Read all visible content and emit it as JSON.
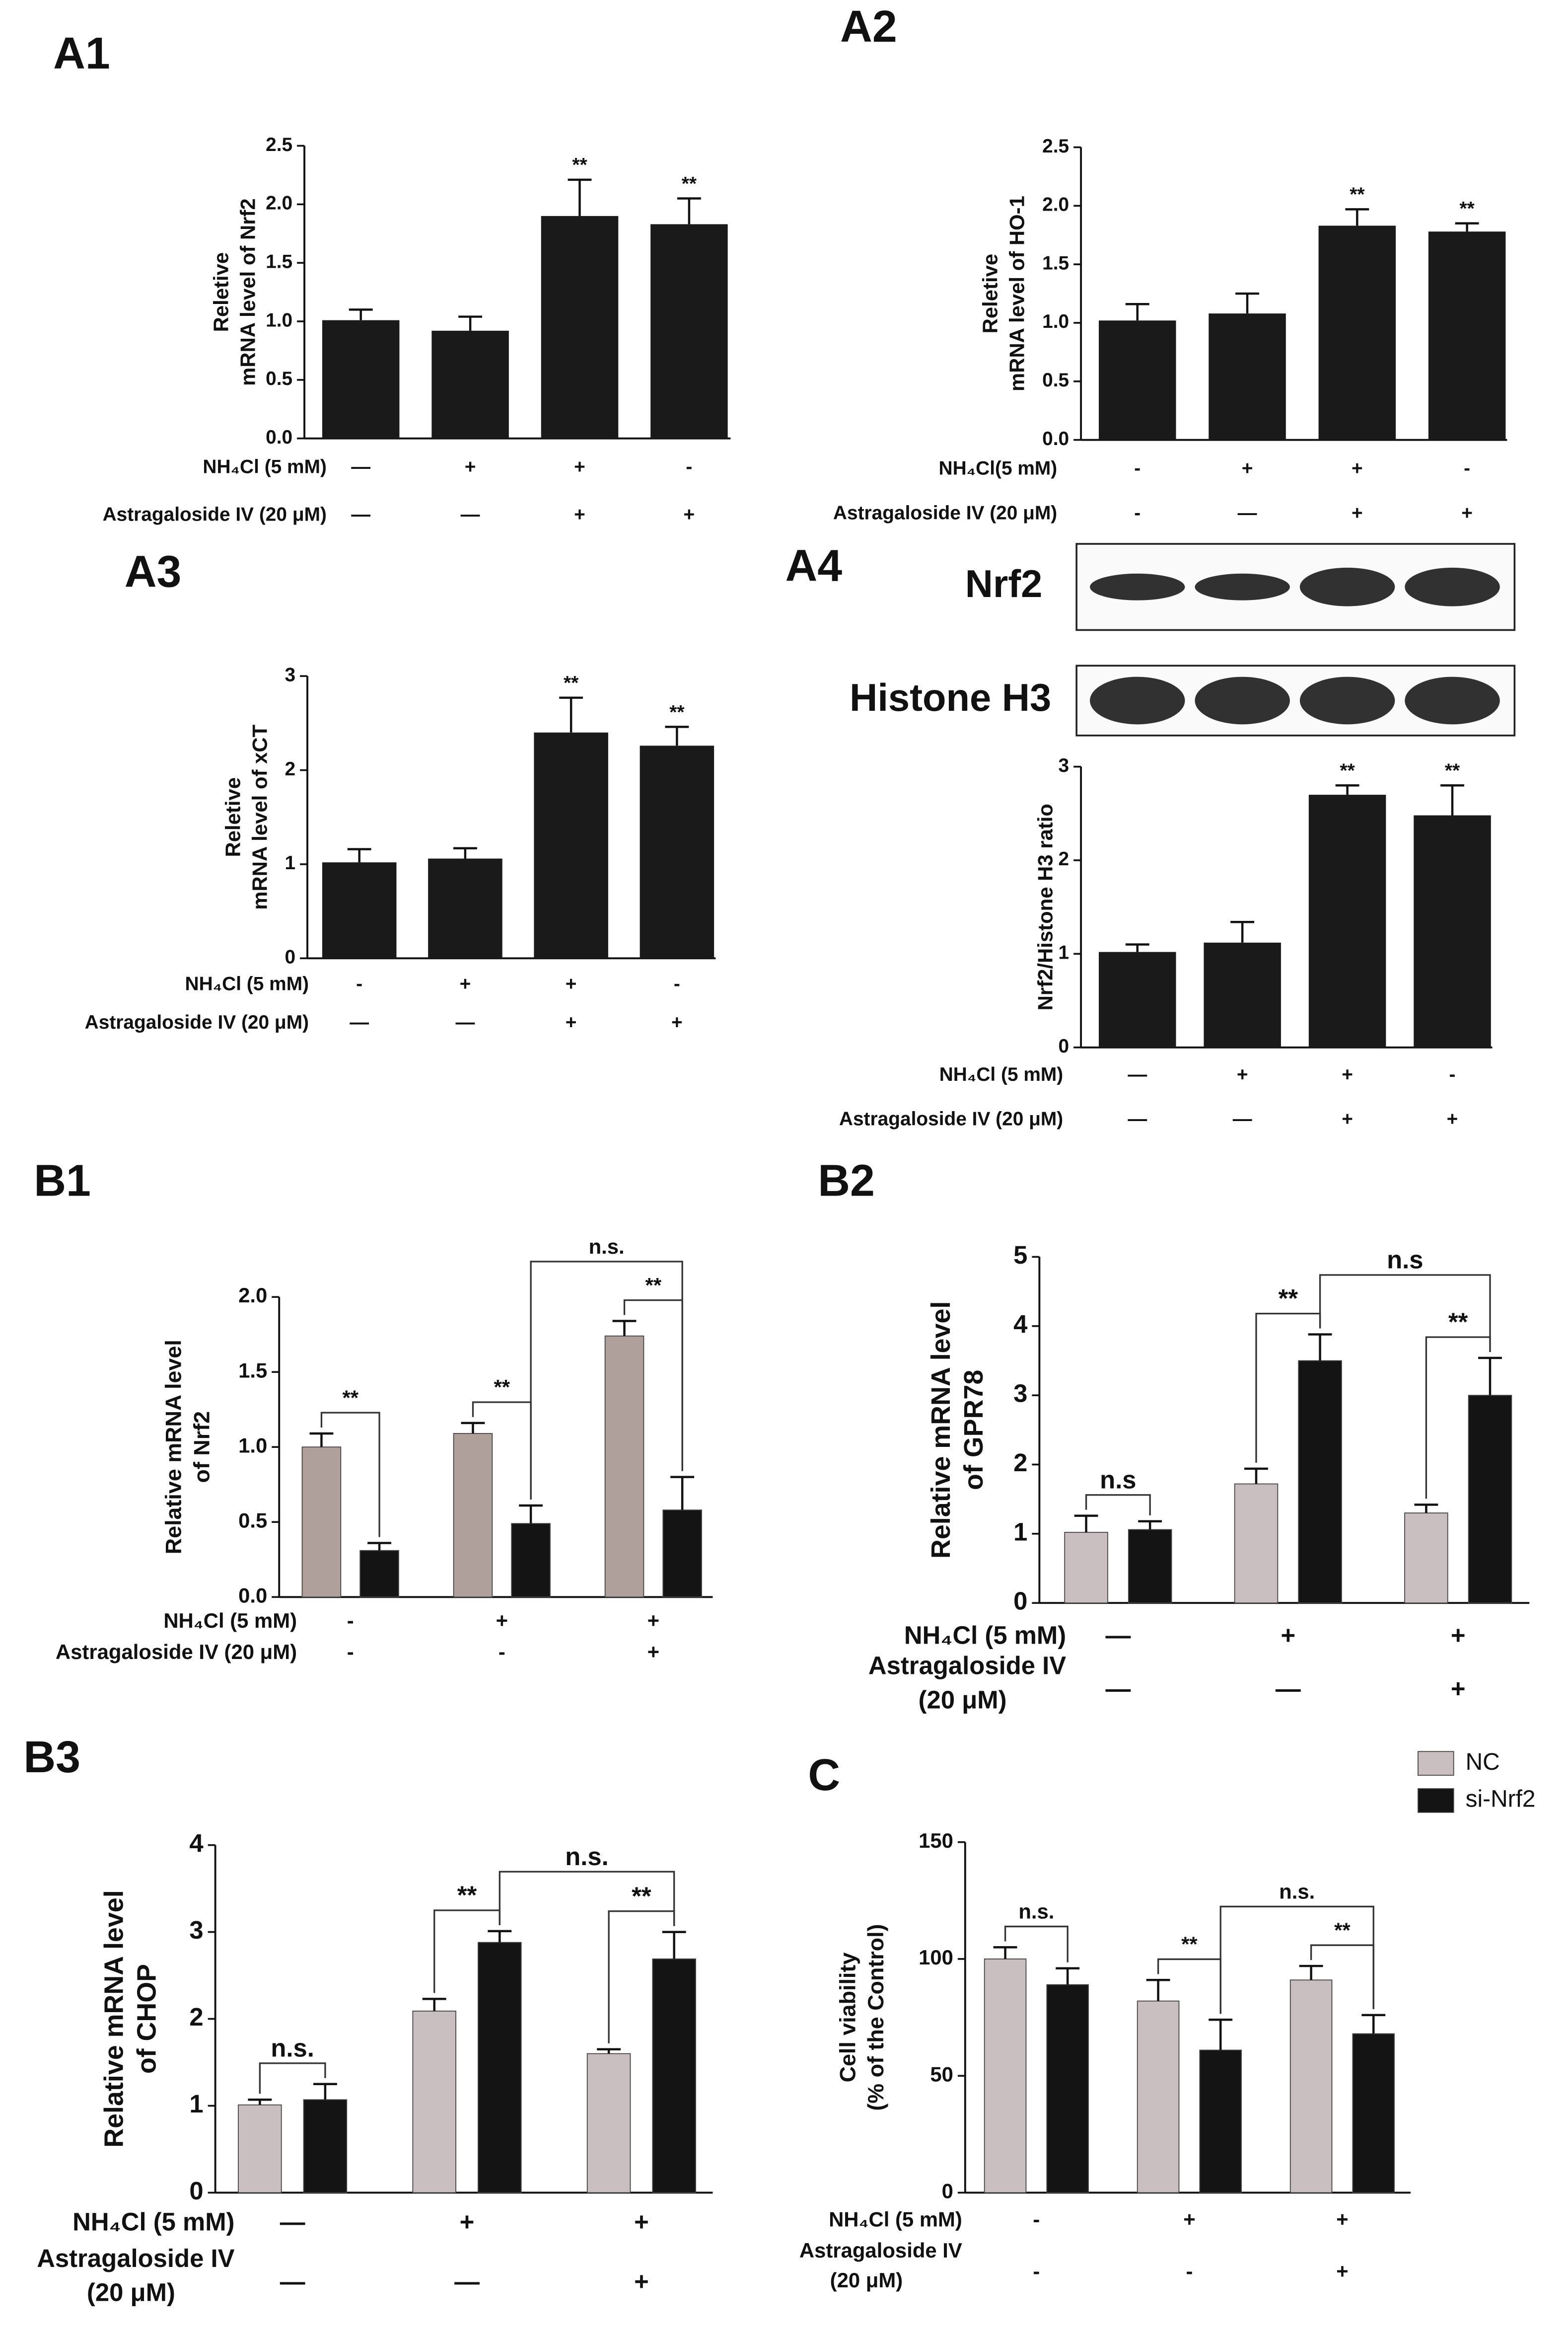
{
  "chart_data": [
    {
      "type": "bar",
      "panel": "A1",
      "ylabel": [
        "Reletive",
        "mRNA level of Nrf2"
      ],
      "color": "#1a1a1a",
      "values": [
        1.01,
        0.92,
        1.9,
        1.83
      ],
      "errors": [
        0.09,
        0.12,
        0.31,
        0.22
      ],
      "bar_labels": [
        null,
        null,
        "**",
        "**"
      ],
      "ylim": [
        0,
        2.5
      ],
      "yticks": [
        {
          "value": 0,
          "label": "0.0"
        },
        0.5,
        {
          "value": 1,
          "label": "1.0"
        },
        1.5,
        {
          "value": 2,
          "label": "2.0"
        },
        2.5
      ],
      "conditions": [
        {
          "label": "NH₄Cl (5 mM)",
          "marks": [
            "—",
            "+",
            "+",
            "-"
          ]
        },
        {
          "label": "Astragaloside IV (20 μM)",
          "marks": [
            "—",
            "—",
            "+",
            "+"
          ]
        }
      ]
    },
    {
      "type": "bar",
      "panel": "A2",
      "ylabel": [
        "Reletive",
        "mRNA level of HO-1"
      ],
      "color": "#1a1a1a",
      "values": [
        1.02,
        1.08,
        1.83,
        1.78
      ],
      "errors": [
        0.14,
        0.17,
        0.14,
        0.07
      ],
      "bar_labels": [
        null,
        null,
        "**",
        "**"
      ],
      "ylim": [
        0,
        2.5
      ],
      "yticks": [
        {
          "value": 0,
          "label": "0.0"
        },
        0.5,
        {
          "value": 1,
          "label": "1.0"
        },
        1.5,
        {
          "value": 2,
          "label": "2.0"
        },
        2.5
      ],
      "conditions": [
        {
          "label": "NH₄Cl(5 mM)",
          "marks": [
            "-",
            "+",
            "+",
            "-"
          ]
        },
        {
          "label": "Astragaloside IV (20 μM)",
          "marks": [
            "-",
            "—",
            "+",
            "+"
          ]
        }
      ]
    },
    {
      "type": "bar",
      "panel": "A3",
      "ylabel": [
        "Reletive",
        "mRNA level of xCT"
      ],
      "color": "#1a1a1a",
      "values": [
        1.02,
        1.06,
        2.4,
        2.26
      ],
      "errors": [
        0.14,
        0.11,
        0.37,
        0.2
      ],
      "bar_labels": [
        null,
        null,
        "**",
        "**"
      ],
      "ylim": [
        0,
        3
      ],
      "yticks": [
        0,
        1,
        2,
        3
      ],
      "conditions": [
        {
          "label": "NH₄Cl (5 mM)",
          "marks": [
            "-",
            "+",
            "+",
            "-"
          ]
        },
        {
          "label": "Astragaloside IV (20 μM)",
          "marks": [
            "—",
            "—",
            "+",
            "+"
          ]
        }
      ]
    },
    {
      "type": "bar",
      "panel": "A4",
      "blot_labels": [
        "Nrf2",
        "Histone H3"
      ],
      "ylabel": [
        "Nrf2/Histone H3 ratio"
      ],
      "color": "#1a1a1a",
      "values": [
        1.02,
        1.12,
        2.7,
        2.48
      ],
      "errors": [
        0.08,
        0.22,
        0.1,
        0.32
      ],
      "bar_labels": [
        null,
        null,
        "**",
        "**"
      ],
      "ylim": [
        0,
        3
      ],
      "yticks": [
        0,
        1,
        2,
        3
      ],
      "conditions": [
        {
          "label": "NH₄Cl (5 mM)",
          "marks": [
            "—",
            "+",
            "+",
            "-"
          ]
        },
        {
          "label": "Astragaloside IV (20 μM)",
          "marks": [
            "—",
            "—",
            "+",
            "+"
          ]
        }
      ]
    },
    {
      "type": "grouped_bar",
      "panel": "B1",
      "ylabel": [
        "Relative mRNA level",
        "of Nrf2"
      ],
      "series": [
        {
          "color": "#b0a09c",
          "values": [
            1.0,
            1.09,
            1.74
          ],
          "errors": [
            0.09,
            0.07,
            0.1
          ]
        },
        {
          "color": "#141414",
          "values": [
            0.31,
            0.49,
            0.58
          ],
          "errors": [
            0.05,
            0.12,
            0.22
          ]
        }
      ],
      "brackets": [
        {
          "from": [
            0,
            0
          ],
          "to": [
            0,
            1
          ],
          "label": "**"
        },
        {
          "from": [
            1,
            0
          ],
          "to": [
            1,
            1
          ],
          "label": "**"
        },
        {
          "from": [
            2,
            0
          ],
          "to": [
            2,
            1
          ],
          "label": "**"
        },
        {
          "from": [
            1,
            1
          ],
          "to": [
            2,
            1
          ],
          "label": "n.s."
        }
      ],
      "ylim": [
        0,
        2
      ],
      "yticks": [
        {
          "value": 0,
          "label": "0.0"
        },
        0.5,
        {
          "value": 1,
          "label": "1.0"
        },
        1.5,
        {
          "value": 2,
          "label": "2.0"
        }
      ],
      "conditions": [
        {
          "label": "NH₄Cl (5 mM)",
          "marks": [
            "-",
            "+",
            "+"
          ]
        },
        {
          "label": "Astragaloside IV (20 μM)",
          "marks": [
            "-",
            "-",
            "+"
          ]
        }
      ]
    },
    {
      "type": "grouped_bar",
      "panel": "B2",
      "ylabel": [
        "Relative mRNA level",
        "of GPR78"
      ],
      "series": [
        {
          "color": "#c9bfc0",
          "values": [
            1.02,
            1.72,
            1.3
          ],
          "errors": [
            0.24,
            0.22,
            0.12
          ]
        },
        {
          "color": "#141414",
          "values": [
            1.06,
            3.5,
            3.0
          ],
          "errors": [
            0.12,
            0.38,
            0.54
          ]
        }
      ],
      "brackets": [
        {
          "from": [
            0,
            0
          ],
          "to": [
            0,
            1
          ],
          "label": "n.s"
        },
        {
          "from": [
            1,
            0
          ],
          "to": [
            1,
            1
          ],
          "label": "**"
        },
        {
          "from": [
            2,
            0
          ],
          "to": [
            2,
            1
          ],
          "label": "**"
        },
        {
          "from": [
            1,
            1
          ],
          "to": [
            2,
            1
          ],
          "label": "n.s"
        }
      ],
      "ylim": [
        0,
        5
      ],
      "yticks": [
        0,
        1,
        2,
        3,
        4,
        5
      ],
      "conditions": [
        {
          "label": [
            "NH₄Cl (5 mM)"
          ],
          "marks": [
            "—",
            "+",
            "+"
          ]
        },
        {
          "label": [
            "Astragaloside IV",
            "(20 μM)"
          ],
          "marks": [
            "—",
            "—",
            "+"
          ]
        }
      ]
    },
    {
      "type": "grouped_bar",
      "panel": "B3",
      "ylabel": [
        "Relative mRNA level",
        "of CHOP"
      ],
      "series": [
        {
          "color": "#c9bfc0",
          "values": [
            1.01,
            2.09,
            1.6
          ],
          "errors": [
            0.06,
            0.14,
            0.05
          ]
        },
        {
          "color": "#141414",
          "values": [
            1.07,
            2.88,
            2.69
          ],
          "errors": [
            0.18,
            0.13,
            0.31
          ]
        }
      ],
      "brackets": [
        {
          "from": [
            0,
            0
          ],
          "to": [
            0,
            1
          ],
          "label": "n.s."
        },
        {
          "from": [
            1,
            0
          ],
          "to": [
            1,
            1
          ],
          "label": "**"
        },
        {
          "from": [
            2,
            0
          ],
          "to": [
            2,
            1
          ],
          "label": "**"
        },
        {
          "from": [
            1,
            1
          ],
          "to": [
            2,
            1
          ],
          "label": "n.s."
        }
      ],
      "ylim": [
        0,
        4
      ],
      "yticks": [
        0,
        1,
        2,
        3,
        4
      ],
      "conditions": [
        {
          "label": [
            "NH₄Cl (5 mM)"
          ],
          "marks": [
            "—",
            "+",
            "+"
          ]
        },
        {
          "label": [
            "Astragaloside IV",
            "(20 μM)"
          ],
          "marks": [
            "—",
            "—",
            "+"
          ]
        }
      ]
    },
    {
      "type": "grouped_bar",
      "panel": "C",
      "ylabel": [
        "Cell viability",
        "(% of the Control)"
      ],
      "legend": "top-right",
      "series": [
        {
          "name": "NC",
          "color": "#c9bfc0",
          "values": [
            100,
            82,
            91
          ],
          "errors": [
            5,
            9,
            6
          ]
        },
        {
          "name": "si-Nrf2",
          "color": "#141414",
          "values": [
            89,
            61,
            68
          ],
          "errors": [
            7,
            13,
            8
          ]
        }
      ],
      "brackets": [
        {
          "from": [
            0,
            0
          ],
          "to": [
            0,
            1
          ],
          "label": "n.s."
        },
        {
          "from": [
            1,
            0
          ],
          "to": [
            1,
            1
          ],
          "label": "**"
        },
        {
          "from": [
            2,
            0
          ],
          "to": [
            2,
            1
          ],
          "label": "**"
        },
        {
          "from": [
            1,
            1
          ],
          "to": [
            2,
            1
          ],
          "label": "n.s."
        }
      ],
      "ylim": [
        0,
        150
      ],
      "yticks": [
        0,
        50,
        100,
        150
      ],
      "conditions": [
        {
          "label": [
            "NH₄Cl (5 mM)"
          ],
          "marks": [
            "-",
            "+",
            "+"
          ]
        },
        {
          "label": [
            "Astragaloside IV",
            "(20 μM)"
          ],
          "marks": [
            "-",
            "-",
            "+"
          ]
        }
      ]
    }
  ]
}
